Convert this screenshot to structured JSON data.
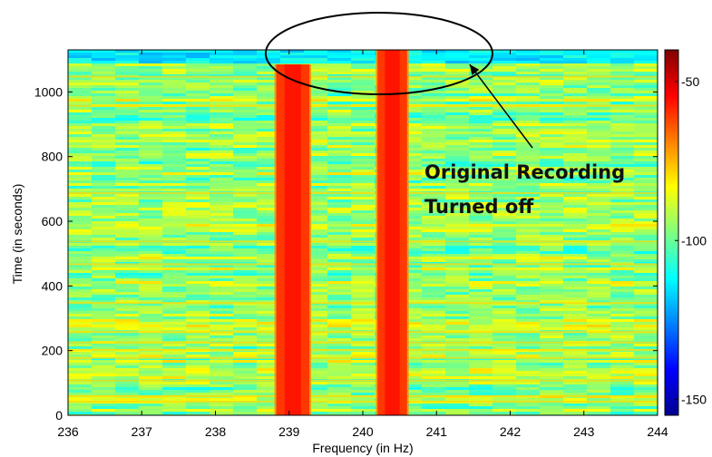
{
  "chart_data": {
    "type": "heatmap",
    "xlabel": "Frequency (in Hz)",
    "ylabel": "Time (in seconds)",
    "xlim": [
      236,
      244
    ],
    "ylim": [
      0,
      1130
    ],
    "x_ticks": [
      236,
      237,
      238,
      239,
      240,
      241,
      242,
      243,
      244
    ],
    "y_ticks": [
      0,
      200,
      400,
      600,
      800,
      1000
    ],
    "colorbar": {
      "range": [
        -155,
        -40
      ],
      "ticks": [
        -50,
        -100,
        -150
      ],
      "colormap": "jet"
    },
    "bands": [
      {
        "center_hz": 239.05,
        "width_hz": 0.45,
        "t_start_s": 0,
        "t_end_s": 1085,
        "level_db": -55
      },
      {
        "center_hz": 240.4,
        "width_hz": 0.4,
        "t_start_s": 0,
        "t_end_s": 1130,
        "level_db": -55
      }
    ],
    "annotation": {
      "lines": [
        "Original Recording",
        "Turned off"
      ],
      "ellipse_center": {
        "x_hz": 239.15,
        "y_s": 1120
      },
      "arrow_target": {
        "x_hz": 241.45,
        "y_s": 1085
      }
    }
  }
}
